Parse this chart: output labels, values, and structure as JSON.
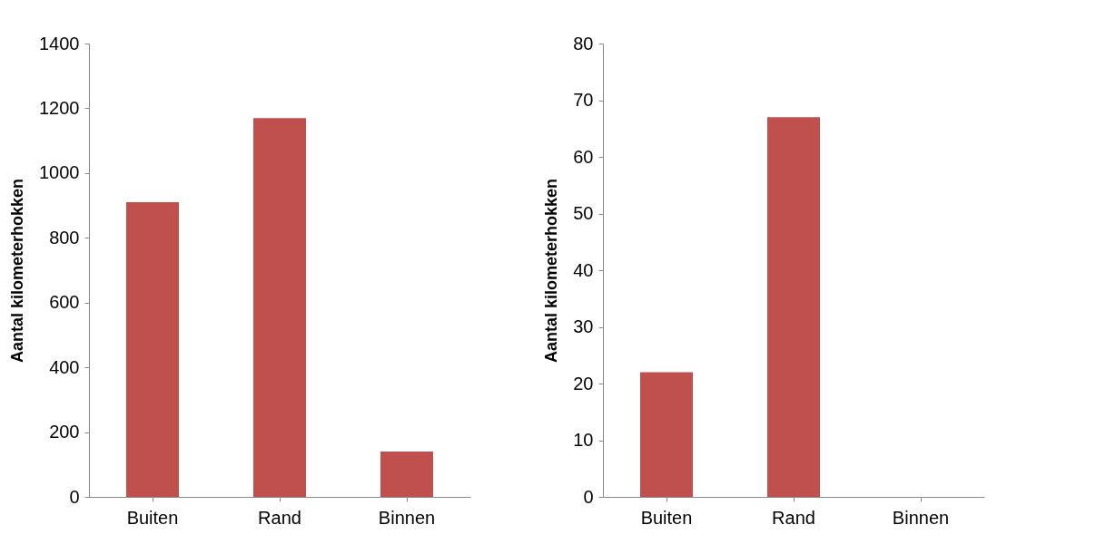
{
  "chart_data": [
    {
      "type": "bar",
      "ylabel": "Aantal kilometerhokken",
      "categories": [
        "Buiten",
        "Rand",
        "Binnen"
      ],
      "values": [
        910,
        1170,
        140
      ],
      "color": "#c0504d",
      "ylim": [
        0,
        1400
      ],
      "yticks": [
        0,
        200,
        400,
        600,
        800,
        1000,
        1200,
        1400
      ]
    },
    {
      "type": "bar",
      "ylabel": "Aantal kilometerhokken",
      "categories": [
        "Buiten",
        "Rand",
        "Binnen"
      ],
      "values": [
        22,
        67,
        0
      ],
      "color": "#c0504d",
      "ylim": [
        0,
        80
      ],
      "yticks": [
        0,
        10,
        20,
        30,
        40,
        50,
        60,
        70,
        80
      ]
    }
  ]
}
